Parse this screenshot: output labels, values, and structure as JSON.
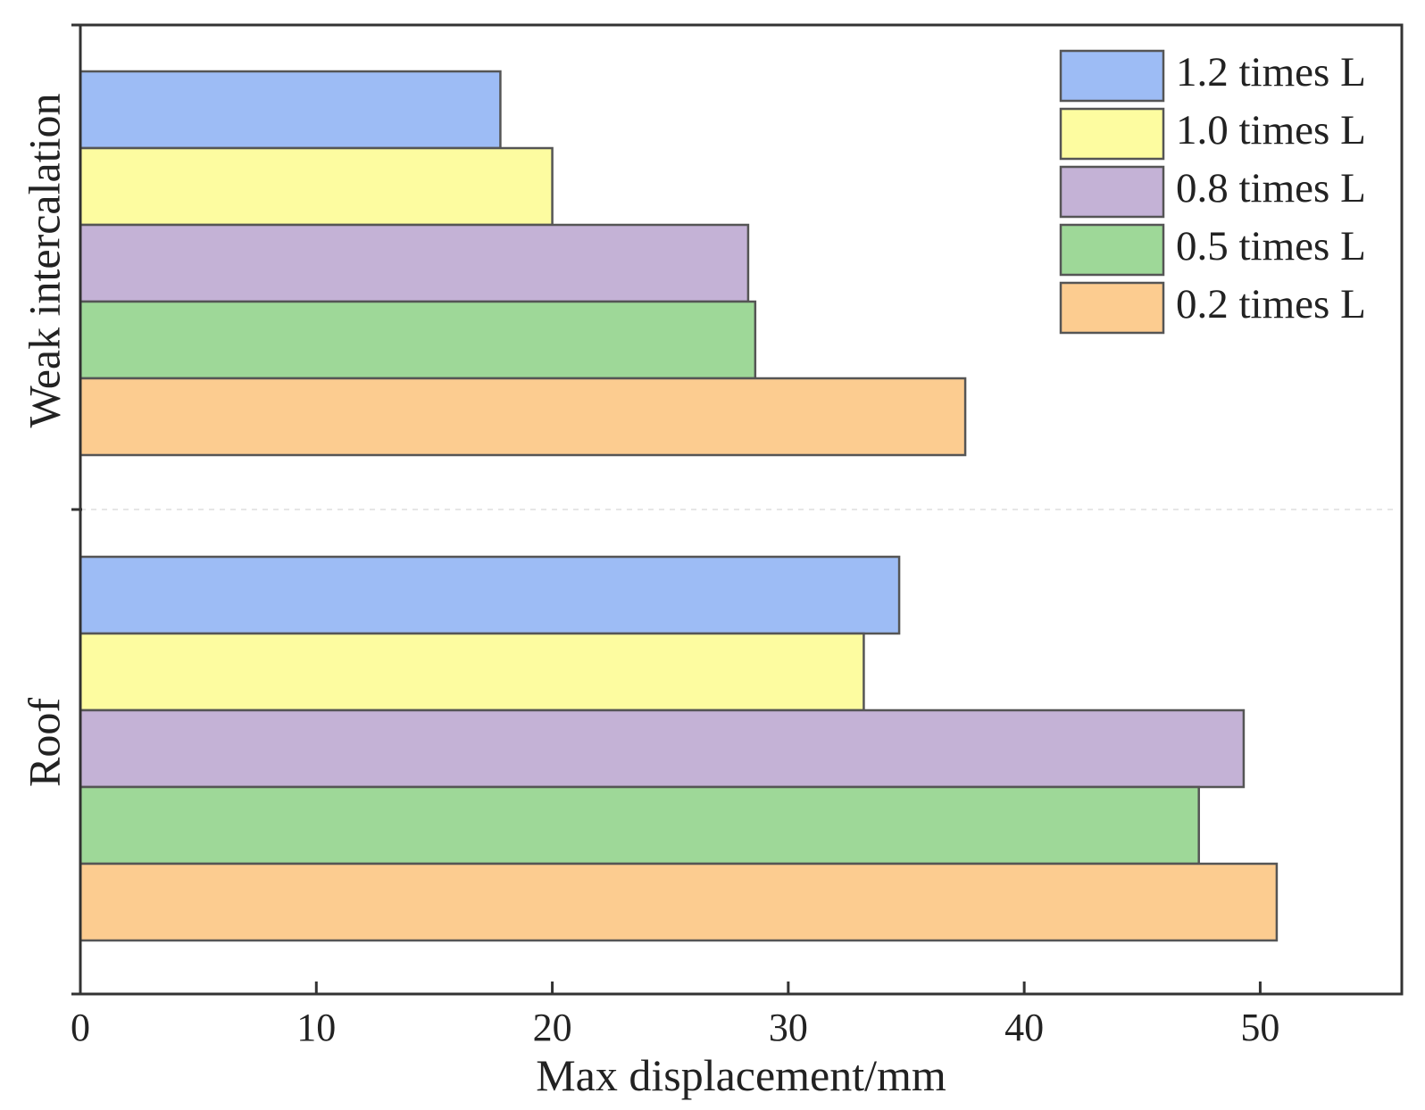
{
  "chart_data": {
    "type": "bar",
    "orientation": "horizontal",
    "title": "",
    "xlabel": "Max displacement/mm",
    "ylabel": "",
    "xlim": [
      0,
      56
    ],
    "xticks": [
      0,
      10,
      20,
      30,
      40,
      50
    ],
    "grid": false,
    "legend_position": "top-right",
    "categories": [
      "Weak intercalation",
      "Roof"
    ],
    "series": [
      {
        "name": "1.2 times L",
        "color": "#9dbcf5",
        "values": [
          17.8,
          34.7
        ]
      },
      {
        "name": "1.0 times L",
        "color": "#fdfca0",
        "values": [
          20.0,
          33.2
        ]
      },
      {
        "name": "0.8 times L",
        "color": "#c4b2d6",
        "values": [
          28.3,
          49.3
        ]
      },
      {
        "name": "0.5 times L",
        "color": "#9ed898",
        "values": [
          28.6,
          47.4
        ]
      },
      {
        "name": "0.2 times L",
        "color": "#fccc90",
        "values": [
          37.5,
          50.7
        ]
      }
    ]
  }
}
